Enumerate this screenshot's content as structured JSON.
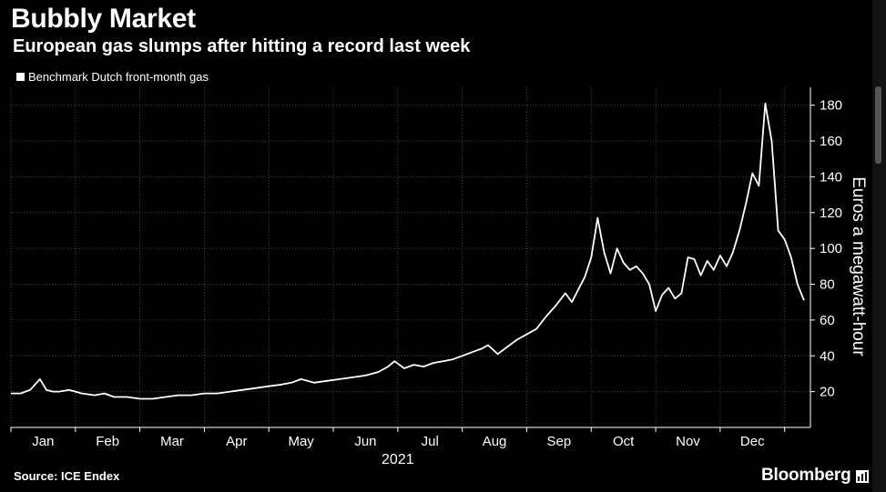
{
  "header": {
    "title": "Bubbly Market",
    "subtitle": "European gas slumps after hitting a record last week"
  },
  "legend": {
    "label": "Benchmark Dutch front-month gas"
  },
  "footer": {
    "source": "Source: ICE Endex",
    "brand": "Bloomberg"
  },
  "colors": {
    "background": "#000000",
    "line": "#ffffff",
    "grid": "#555555"
  },
  "chart_data": {
    "type": "line",
    "title": "Bubbly Market",
    "subtitle": "European gas slumps after hitting a record last week",
    "xlabel": "2021",
    "ylabel": "Euros a megawatt-hour",
    "ylim": [
      0,
      190
    ],
    "yticks": [
      20,
      40,
      60,
      80,
      100,
      120,
      140,
      160,
      180
    ],
    "ytick_labels": [
      "20",
      "40",
      "60",
      "80",
      "100",
      "120",
      "140",
      "160",
      "180"
    ],
    "xlim": [
      0,
      12.4
    ],
    "xtick_labels": [
      "Jan",
      "Feb",
      "Mar",
      "Apr",
      "May",
      "Jun",
      "Jul",
      "Aug",
      "Sep",
      "Oct",
      "Nov",
      "Dec"
    ],
    "grid": true,
    "legend_position": "top-left",
    "series": [
      {
        "name": "Benchmark Dutch front-month gas",
        "x": [
          0.0,
          0.15,
          0.3,
          0.45,
          0.55,
          0.65,
          0.75,
          0.9,
          1.0,
          1.1,
          1.3,
          1.45,
          1.6,
          1.8,
          2.0,
          2.2,
          2.4,
          2.6,
          2.8,
          3.0,
          3.2,
          3.4,
          3.6,
          3.8,
          4.0,
          4.2,
          4.35,
          4.5,
          4.7,
          4.9,
          5.1,
          5.3,
          5.5,
          5.7,
          5.85,
          5.95,
          6.1,
          6.25,
          6.4,
          6.55,
          6.7,
          6.85,
          7.0,
          7.15,
          7.3,
          7.4,
          7.55,
          7.7,
          7.85,
          8.0,
          8.15,
          8.3,
          8.45,
          8.6,
          8.7,
          8.8,
          8.9,
          9.0,
          9.1,
          9.2,
          9.3,
          9.4,
          9.5,
          9.6,
          9.7,
          9.8,
          9.9,
          10.0,
          10.1,
          10.2,
          10.3,
          10.4,
          10.5,
          10.6,
          10.7,
          10.8,
          10.9,
          11.0,
          11.1,
          11.2,
          11.3,
          11.4,
          11.5,
          11.6,
          11.7,
          11.8,
          11.9,
          12.0,
          12.1,
          12.2,
          12.3
        ],
        "values": [
          19,
          19,
          21,
          27,
          21,
          20,
          20,
          21,
          20,
          19,
          18,
          19,
          17,
          17,
          16,
          16,
          17,
          18,
          18,
          19,
          19,
          20,
          21,
          22,
          23,
          24,
          25,
          27,
          25,
          26,
          27,
          28,
          29,
          31,
          34,
          37,
          33,
          35,
          34,
          36,
          37,
          38,
          40,
          42,
          44,
          46,
          41,
          45,
          49,
          52,
          55,
          62,
          68,
          75,
          70,
          77,
          84,
          95,
          117,
          98,
          86,
          100,
          92,
          88,
          90,
          86,
          80,
          65,
          74,
          78,
          72,
          75,
          95,
          94,
          85,
          93,
          88,
          96,
          90,
          98,
          110,
          125,
          142,
          135,
          181,
          160,
          110,
          105,
          95,
          80,
          71
        ]
      }
    ]
  }
}
